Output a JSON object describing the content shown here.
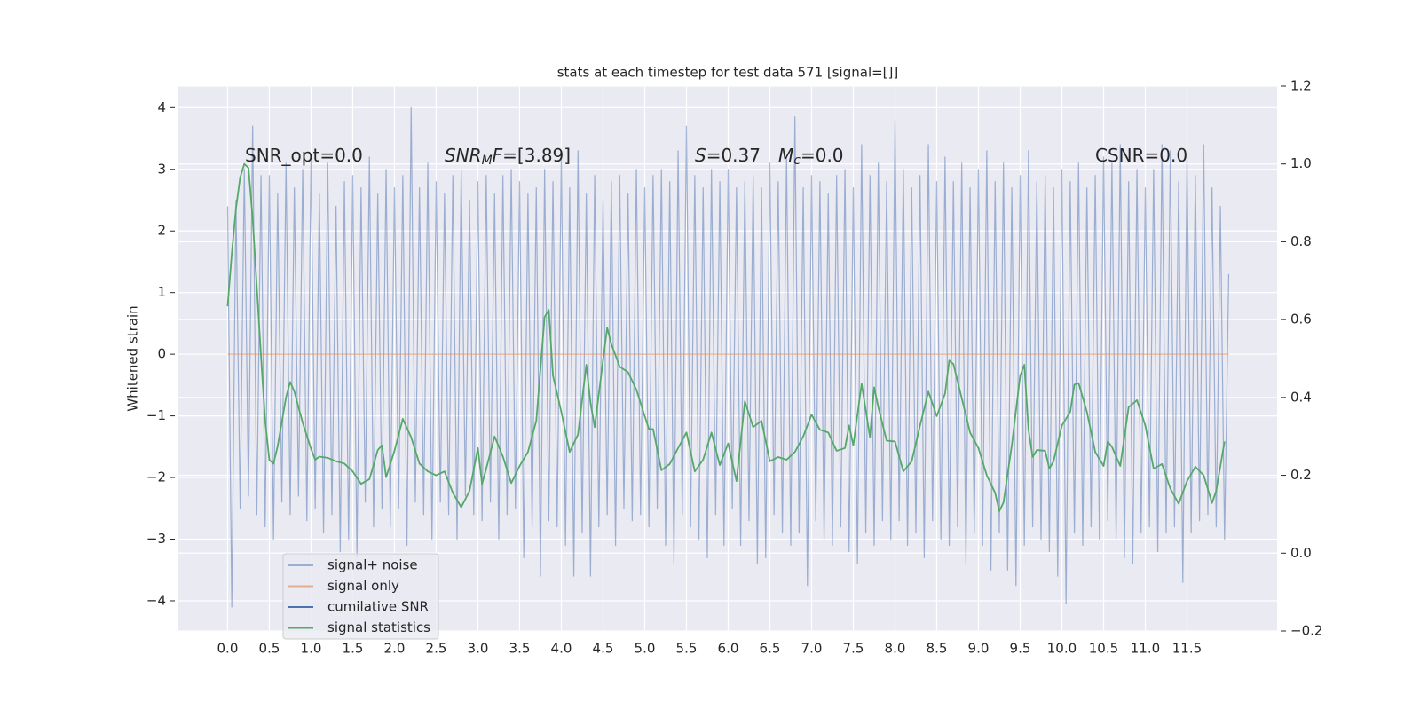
{
  "chart_data": {
    "type": "line",
    "title": "stats at each timestep for test data 571 [signal=[]]",
    "ylabel": "Whitened strain",
    "xlim": [
      -0.59,
      12.58
    ],
    "ylim": [
      -4.49,
      4.35
    ],
    "y2lim": [
      -0.2,
      1.2
    ],
    "grid": true,
    "xticks": [
      {
        "value": 0,
        "label": "0.0"
      },
      0.5,
      {
        "value": 1,
        "label": "1.0"
      },
      1.5,
      {
        "value": 2,
        "label": "2.0"
      },
      2.5,
      {
        "value": 3,
        "label": "3.0"
      },
      3.5,
      {
        "value": 4,
        "label": "4.0"
      },
      4.5,
      {
        "value": 5,
        "label": "5.0"
      },
      5.5,
      {
        "value": 6,
        "label": "6.0"
      },
      6.5,
      {
        "value": 7,
        "label": "7.0"
      },
      7.5,
      {
        "value": 8,
        "label": "8.0"
      },
      8.5,
      {
        "value": 9,
        "label": "9.0"
      },
      9.5,
      {
        "value": 10,
        "label": "10.0"
      },
      10.5,
      {
        "value": 11,
        "label": "11.0"
      },
      11.5
    ],
    "yticks": [
      {
        "value": -4,
        "label": "−4"
      },
      {
        "value": -3,
        "label": "−3"
      },
      {
        "value": -2,
        "label": "−2"
      },
      {
        "value": -1,
        "label": "−1"
      },
      0,
      1,
      2,
      3,
      4
    ],
    "y2ticks": [
      {
        "value": -0.2,
        "label": "−0.2"
      },
      {
        "value": 0,
        "label": "0.0"
      },
      0.2,
      0.4,
      0.6,
      0.8,
      {
        "value": 1,
        "label": "1.0"
      },
      1.2
    ],
    "annotations": [
      {
        "segments": [
          {
            "text": "SNR_opt=0.0"
          }
        ]
      },
      {
        "segments": [
          {
            "text": "SNR",
            "style": "italic"
          },
          {
            "text": "M",
            "style": "italic-sub"
          },
          {
            "text": "F",
            "style": "italic"
          },
          {
            "text": "=[3.89]"
          }
        ]
      },
      {
        "segments": [
          {
            "text": "S",
            "style": "italic"
          },
          {
            "text": "=0.37"
          }
        ]
      },
      {
        "segments": [
          {
            "text": "M",
            "style": "italic"
          },
          {
            "text": "c",
            "style": "italic-sub"
          },
          {
            "text": "=0.0"
          }
        ]
      },
      {
        "segments": [
          {
            "text": "CSNR=0.0"
          }
        ]
      }
    ],
    "series": [
      {
        "name": "signal+ noise",
        "color": "#4c72b0",
        "alpha": 0.5,
        "x": [
          0,
          0.05,
          0.1,
          0.15,
          0.2,
          0.25,
          0.3,
          0.35,
          0.4,
          0.45,
          0.5,
          0.55,
          0.6,
          0.65,
          0.7,
          0.75,
          0.8,
          0.85,
          0.9,
          0.95,
          1,
          1.05,
          1.1,
          1.15,
          1.2,
          1.25,
          1.3,
          1.35,
          1.4,
          1.45,
          1.5,
          1.55,
          1.6,
          1.65,
          1.7,
          1.75,
          1.8,
          1.85,
          1.9,
          1.95,
          2,
          2.05,
          2.1,
          2.15,
          2.2,
          2.25,
          2.3,
          2.35,
          2.4,
          2.45,
          2.5,
          2.55,
          2.6,
          2.65,
          2.7,
          2.75,
          2.8,
          2.85,
          2.9,
          2.95,
          3,
          3.05,
          3.1,
          3.15,
          3.2,
          3.25,
          3.3,
          3.35,
          3.4,
          3.45,
          3.5,
          3.55,
          3.6,
          3.65,
          3.7,
          3.75,
          3.8,
          3.85,
          3.9,
          3.95,
          4,
          4.05,
          4.1,
          4.15,
          4.2,
          4.25,
          4.3,
          4.35,
          4.4,
          4.45,
          4.5,
          4.55,
          4.6,
          4.65,
          4.7,
          4.75,
          4.8,
          4.85,
          4.9,
          4.95,
          5,
          5.05,
          5.1,
          5.15,
          5.2,
          5.25,
          5.3,
          5.35,
          5.4,
          5.45,
          5.5,
          5.55,
          5.6,
          5.65,
          5.7,
          5.75,
          5.8,
          5.85,
          5.9,
          5.95,
          6,
          6.05,
          6.1,
          6.15,
          6.2,
          6.25,
          6.3,
          6.35,
          6.4,
          6.45,
          6.5,
          6.55,
          6.6,
          6.65,
          6.7,
          6.75,
          6.8,
          6.85,
          6.9,
          6.95,
          7,
          7.05,
          7.1,
          7.15,
          7.2,
          7.25,
          7.3,
          7.35,
          7.4,
          7.45,
          7.5,
          7.55,
          7.6,
          7.65,
          7.7,
          7.75,
          7.8,
          7.85,
          7.9,
          7.95,
          8,
          8.05,
          8.1,
          8.15,
          8.2,
          8.25,
          8.3,
          8.35,
          8.4,
          8.45,
          8.5,
          8.55,
          8.6,
          8.65,
          8.7,
          8.75,
          8.8,
          8.85,
          8.9,
          8.95,
          9,
          9.05,
          9.1,
          9.15,
          9.2,
          9.25,
          9.3,
          9.35,
          9.4,
          9.45,
          9.5,
          9.55,
          9.6,
          9.65,
          9.7,
          9.75,
          9.8,
          9.85,
          9.9,
          9.95,
          10,
          10.05,
          10.1,
          10.15,
          10.2,
          10.25,
          10.3,
          10.35,
          10.4,
          10.45,
          10.5,
          10.55,
          10.6,
          10.65,
          10.7,
          10.75,
          10.8,
          10.85,
          10.9,
          10.95,
          11,
          11.05,
          11.1,
          11.15,
          11.2,
          11.25,
          11.3,
          11.35,
          11.4,
          11.45,
          11.5,
          11.55,
          11.6,
          11.65,
          11.7,
          11.75,
          11.8,
          11.85,
          11.9,
          11.95,
          12
        ],
        "values": [
          2.4,
          -4.1,
          2.5,
          -2.5,
          3.0,
          -2.3,
          3.7,
          -2.6,
          2.9,
          -2.8,
          2.9,
          -3.0,
          2.6,
          -2.4,
          3.1,
          -2.6,
          2.7,
          -2.3,
          3.0,
          -2.7,
          3.2,
          -2.5,
          2.6,
          -2.9,
          3.1,
          -2.6,
          2.4,
          -3.2,
          2.8,
          -3.0,
          2.9,
          -3.3,
          2.7,
          -2.4,
          3.2,
          -2.8,
          2.6,
          -2.5,
          3.0,
          -2.8,
          2.7,
          -2.5,
          2.9,
          -3.1,
          4.0,
          -2.4,
          2.7,
          -2.6,
          3.1,
          -3.0,
          2.8,
          -2.4,
          2.6,
          -2.6,
          2.9,
          -3.0,
          3.0,
          -2.3,
          2.5,
          -2.6,
          2.8,
          -2.7,
          2.9,
          -2.4,
          2.6,
          -3.0,
          2.9,
          -2.6,
          3.0,
          -2.5,
          2.8,
          -3.3,
          2.6,
          -2.8,
          2.7,
          -3.6,
          3.0,
          -2.7,
          2.8,
          -2.8,
          3.2,
          -3.1,
          2.7,
          -3.6,
          3.3,
          -2.9,
          2.6,
          -3.6,
          2.9,
          -2.8,
          2.5,
          -2.6,
          2.8,
          -3.1,
          2.9,
          -2.5,
          2.6,
          -2.7,
          3.0,
          -2.6,
          2.7,
          -2.8,
          2.9,
          -2.5,
          3.0,
          -3.1,
          2.8,
          -3.4,
          3.3,
          -2.6,
          3.7,
          -2.8,
          2.9,
          -3.0,
          2.7,
          -3.3,
          3.0,
          -2.6,
          2.8,
          -3.1,
          3.0,
          -2.5,
          2.7,
          -3.1,
          2.8,
          -2.7,
          2.9,
          -3.4,
          2.7,
          -3.3,
          3.1,
          -2.6,
          2.8,
          -2.9,
          3.2,
          -3.1,
          3.85,
          -2.9,
          2.7,
          -3.75,
          2.9,
          -2.7,
          2.8,
          -3.0,
          2.6,
          -3.1,
          2.9,
          -2.8,
          3.0,
          -3.2,
          2.7,
          -3.4,
          3.4,
          -2.9,
          2.9,
          -3.1,
          3.1,
          -2.7,
          2.8,
          -3.0,
          3.8,
          -2.7,
          3.0,
          -3.1,
          2.7,
          -2.9,
          2.9,
          -3.3,
          3.4,
          -2.7,
          2.8,
          -3.0,
          3.2,
          -3.1,
          2.8,
          -2.8,
          3.1,
          -3.4,
          2.7,
          -2.9,
          3.0,
          -3.1,
          3.3,
          -3.5,
          2.8,
          -2.9,
          3.1,
          -3.5,
          2.7,
          -3.75,
          2.9,
          -3.1,
          3.3,
          -2.8,
          2.8,
          -3.0,
          2.9,
          -3.2,
          2.7,
          -3.6,
          3.0,
          -4.05,
          2.8,
          -2.9,
          3.1,
          -3.1,
          2.7,
          -2.8,
          2.9,
          -3.0,
          3.2,
          -2.7,
          3.1,
          -3.0,
          3.4,
          -3.3,
          2.8,
          -3.4,
          3.0,
          -2.9,
          2.7,
          -2.8,
          3.0,
          -3.2,
          3.4,
          -2.9,
          3.3,
          -2.8,
          2.8,
          -3.7,
          3.2,
          -2.9,
          2.9,
          -2.7,
          3.4,
          -2.6,
          2.7,
          -2.8,
          2.4,
          -3.0,
          1.3
        ]
      },
      {
        "name": "signal only",
        "color": "#dd8452",
        "alpha": 0.6,
        "x": [
          0,
          12
        ],
        "values": [
          0,
          0
        ]
      },
      {
        "name": "cumilative SNR",
        "color": "#4c72b0",
        "x": [],
        "values": []
      },
      {
        "name": "signal statistics",
        "color": "#55a868",
        "axis": "y2",
        "x": [
          0,
          0.05,
          0.1,
          0.15,
          0.2,
          0.25,
          0.3,
          0.4,
          0.45,
          0.5,
          0.55,
          0.6,
          0.7,
          0.75,
          0.8,
          0.9,
          1,
          1.05,
          1.1,
          1.2,
          1.3,
          1.4,
          1.5,
          1.6,
          1.7,
          1.8,
          1.85,
          1.9,
          2,
          2.1,
          2.2,
          2.3,
          2.4,
          2.5,
          2.6,
          2.7,
          2.8,
          2.9,
          3,
          3.05,
          3.1,
          3.2,
          3.3,
          3.4,
          3.5,
          3.6,
          3.7,
          3.8,
          3.85,
          3.9,
          4,
          4.1,
          4.2,
          4.3,
          4.35,
          4.4,
          4.5,
          4.55,
          4.6,
          4.7,
          4.8,
          4.9,
          5,
          5.05,
          5.1,
          5.2,
          5.3,
          5.4,
          5.5,
          5.6,
          5.7,
          5.8,
          5.9,
          6,
          6.1,
          6.2,
          6.3,
          6.4,
          6.5,
          6.6,
          6.7,
          6.8,
          6.9,
          7,
          7.1,
          7.2,
          7.3,
          7.4,
          7.45,
          7.5,
          7.6,
          7.7,
          7.75,
          7.8,
          7.9,
          8,
          8.1,
          8.2,
          8.3,
          8.4,
          8.5,
          8.6,
          8.65,
          8.7,
          8.8,
          8.9,
          9,
          9.1,
          9.2,
          9.25,
          9.3,
          9.4,
          9.5,
          9.55,
          9.6,
          9.65,
          9.7,
          9.8,
          9.85,
          9.9,
          10,
          10.1,
          10.15,
          10.2,
          10.3,
          10.4,
          10.5,
          10.55,
          10.6,
          10.7,
          10.8,
          10.9,
          11,
          11.1,
          11.2,
          11.3,
          11.4,
          11.5,
          11.6,
          11.7,
          11.8,
          11.85,
          11.95
        ],
        "values": [
          0.634,
          0.77,
          0.885,
          0.965,
          1.0,
          0.99,
          0.86,
          0.507,
          0.34,
          0.24,
          0.23,
          0.275,
          0.4,
          0.44,
          0.415,
          0.335,
          0.268,
          0.24,
          0.248,
          0.245,
          0.236,
          0.23,
          0.21,
          0.178,
          0.19,
          0.265,
          0.277,
          0.195,
          0.263,
          0.345,
          0.298,
          0.23,
          0.21,
          0.2,
          0.21,
          0.155,
          0.118,
          0.16,
          0.27,
          0.178,
          0.217,
          0.3,
          0.248,
          0.18,
          0.224,
          0.26,
          0.34,
          0.607,
          0.625,
          0.456,
          0.363,
          0.26,
          0.305,
          0.484,
          0.386,
          0.324,
          0.495,
          0.579,
          0.537,
          0.479,
          0.465,
          0.42,
          0.352,
          0.319,
          0.319,
          0.213,
          0.229,
          0.27,
          0.31,
          0.21,
          0.24,
          0.31,
          0.226,
          0.282,
          0.185,
          0.39,
          0.324,
          0.34,
          0.236,
          0.247,
          0.24,
          0.26,
          0.3,
          0.356,
          0.317,
          0.31,
          0.263,
          0.27,
          0.328,
          0.277,
          0.435,
          0.298,
          0.426,
          0.375,
          0.289,
          0.287,
          0.21,
          0.236,
          0.328,
          0.415,
          0.352,
          0.41,
          0.495,
          0.486,
          0.398,
          0.31,
          0.27,
          0.2,
          0.155,
          0.108,
          0.13,
          0.277,
          0.456,
          0.484,
          0.317,
          0.247,
          0.265,
          0.263,
          0.217,
          0.236,
          0.328,
          0.363,
          0.433,
          0.437,
          0.363,
          0.26,
          0.224,
          0.287,
          0.273,
          0.224,
          0.375,
          0.393,
          0.328,
          0.217,
          0.229,
          0.166,
          0.127,
          0.185,
          0.222,
          0.2,
          0.129,
          0.16,
          0.287
        ]
      }
    ]
  }
}
